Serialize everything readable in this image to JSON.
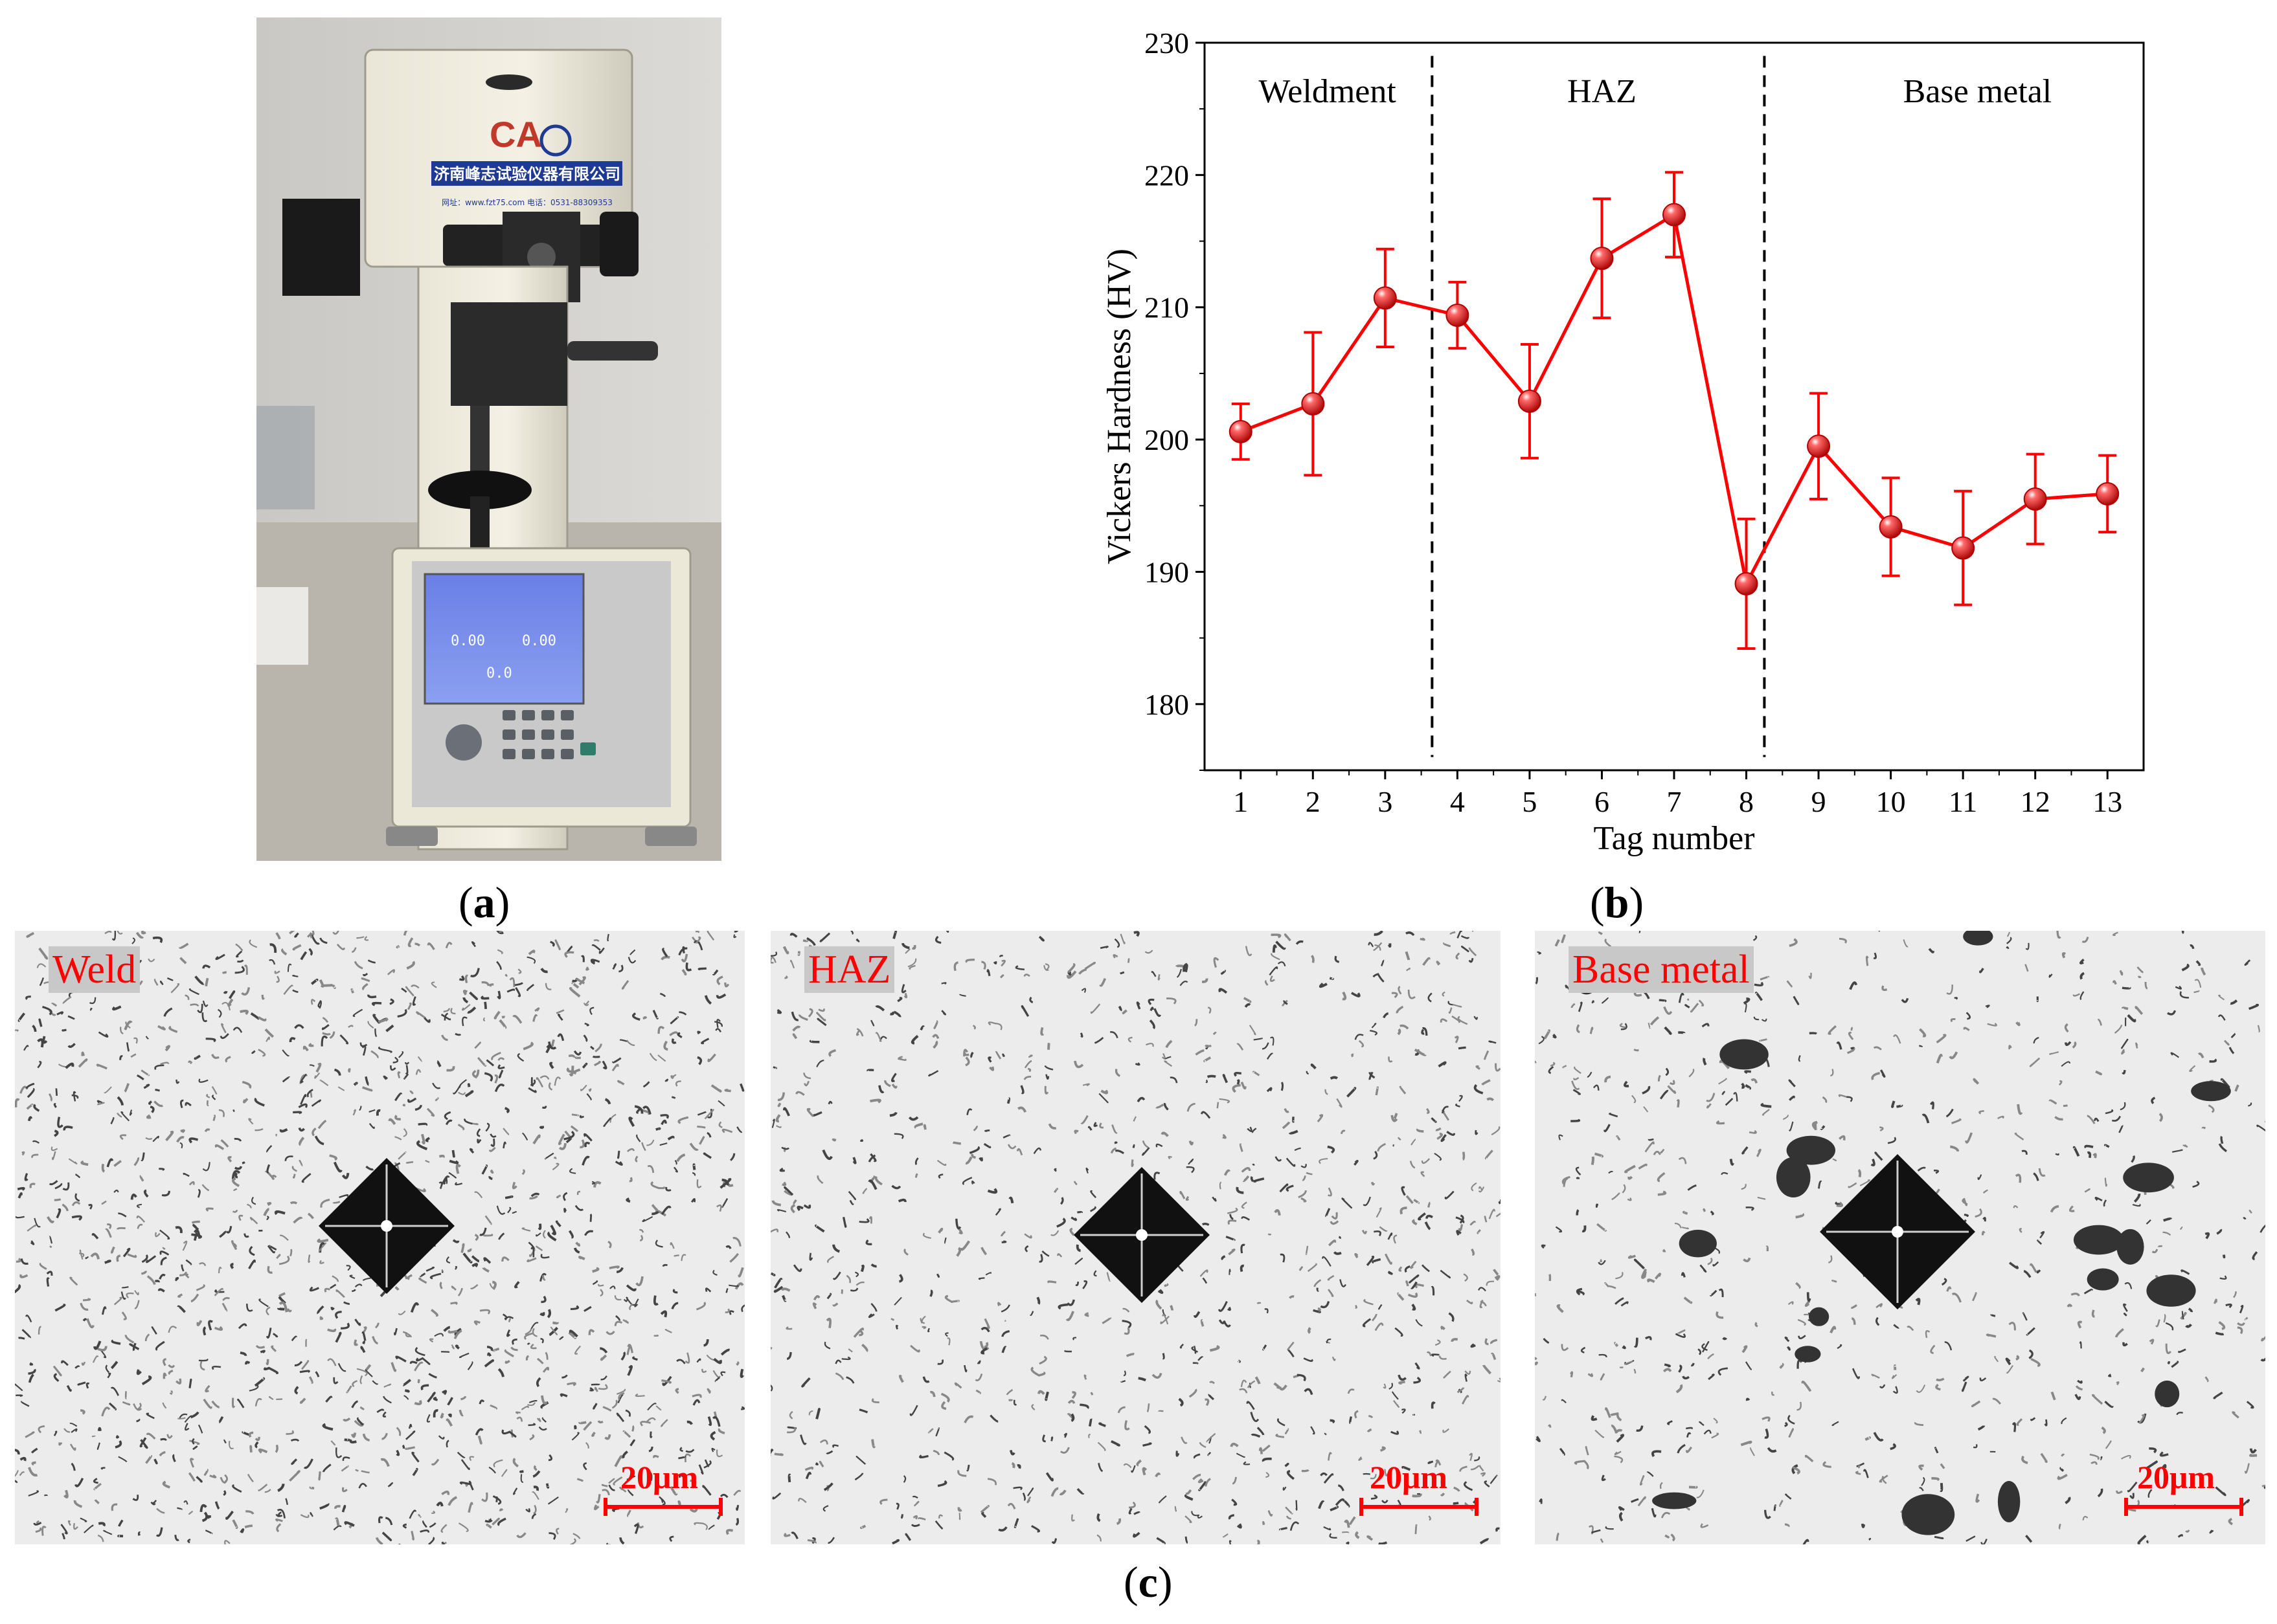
{
  "panels": {
    "a": {
      "caption": "a",
      "machine_label_cn": "济南峰志试验仪器有限公司",
      "machine_web": "网址：www.fzt75.com  电话：0531-88309353",
      "lcd": {
        "reading_left": "0.00",
        "reading_right": "0.00",
        "reading_center": "0.0"
      }
    },
    "b": {
      "caption": "b"
    },
    "c": {
      "caption": "c",
      "images": [
        {
          "label": "Weld",
          "scale_label": "20μm"
        },
        {
          "label": "HAZ",
          "scale_label": "20μm"
        },
        {
          "label": "Base metal",
          "scale_label": "20μm"
        }
      ]
    }
  },
  "colors": {
    "series": "#ff0000",
    "scale_bar": "#ff0000",
    "label_background": "#c8c8c8"
  },
  "chart_data": {
    "type": "line",
    "title": "",
    "xlabel": "Tag number",
    "ylabel": "Vickers Hardness (HV)",
    "xlim": [
      0.5,
      13.5
    ],
    "ylim": [
      175,
      230
    ],
    "x_ticks": [
      "1",
      "2",
      "3",
      "4",
      "5",
      "6",
      "7",
      "8",
      "9",
      "10",
      "11",
      "12",
      "13"
    ],
    "y_ticks": [
      "180",
      "190",
      "200",
      "210",
      "220",
      "230"
    ],
    "grid": false,
    "legend": "none",
    "marker": "sphere",
    "region_dividers": [
      3.65,
      8.25
    ],
    "regions": [
      {
        "label": "Weldment",
        "center": 2.2
      },
      {
        "label": "HAZ",
        "center": 6.0
      },
      {
        "label": "Base metal",
        "center": 11.2
      }
    ],
    "series": [
      {
        "x": [
          1,
          2,
          3,
          4,
          5,
          6,
          7,
          8,
          9,
          10,
          11,
          12,
          13
        ],
        "values": [
          200.6,
          202.7,
          210.7,
          209.4,
          202.9,
          213.7,
          217.0,
          189.1,
          199.5,
          193.4,
          191.8,
          195.5,
          195.9
        ],
        "error": [
          2.1,
          5.4,
          3.7,
          2.5,
          4.3,
          4.5,
          3.2,
          4.9,
          4.0,
          3.7,
          4.3,
          3.4,
          2.9
        ]
      }
    ]
  }
}
